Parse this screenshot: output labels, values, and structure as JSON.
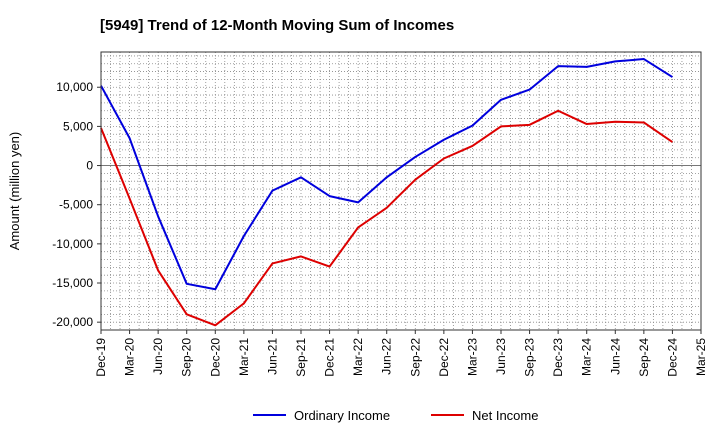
{
  "chart_data": {
    "type": "line",
    "title": "[5949]  Trend of 12-Month Moving Sum of Incomes",
    "xlabel": "",
    "ylabel": "Amount (million yen)",
    "categories": [
      "Dec-19",
      "Mar-20",
      "Jun-20",
      "Sep-20",
      "Dec-20",
      "Mar-21",
      "Jun-21",
      "Sep-21",
      "Dec-21",
      "Mar-22",
      "Jun-22",
      "Sep-22",
      "Dec-22",
      "Mar-23",
      "Jun-23",
      "Sep-23",
      "Dec-23",
      "Mar-24",
      "Jun-24",
      "Sep-24",
      "Dec-24",
      "Mar-25"
    ],
    "ylim": [
      -21000,
      14500
    ],
    "yticks": [
      10000,
      5000,
      0,
      -5000,
      -10000,
      -15000,
      -20000
    ],
    "ytick_labels": [
      "10,000",
      "5,000",
      "0",
      "-5,000",
      "-10,000",
      "-15,000",
      "-20,000"
    ],
    "grid": true,
    "legend_position": "bottom",
    "series": [
      {
        "name": "Ordinary Income",
        "color": "#0000dd",
        "values": [
          10200,
          3500,
          -6500,
          -15100,
          -15800,
          -9000,
          -3200,
          -1500,
          -3900,
          -4700,
          -1500,
          1100,
          3300,
          5100,
          8400,
          9700,
          12700,
          12600,
          13300,
          13600,
          11300,
          null
        ]
      },
      {
        "name": "Net Income",
        "color": "#dd0000",
        "values": [
          4800,
          -4200,
          -13400,
          -19000,
          -20400,
          -17600,
          -12500,
          -11600,
          -12900,
          -7900,
          -5400,
          -1800,
          900,
          2500,
          5000,
          5200,
          7000,
          5300,
          5600,
          5500,
          3000,
          null
        ]
      }
    ]
  }
}
